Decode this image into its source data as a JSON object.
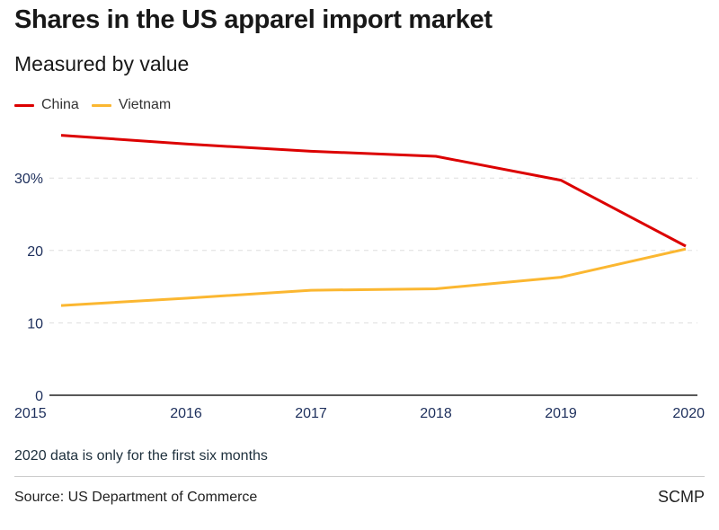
{
  "header": {
    "title": "Shares in the US apparel import market",
    "subtitle": "Measured by value"
  },
  "footer": {
    "note": "2020 data is only for the first six months",
    "source": "Source: US Department of Commerce",
    "brand": "SCMP"
  },
  "chart_data": {
    "type": "line",
    "title": "Shares in the US apparel import market",
    "subtitle": "Measured by value",
    "xlabel": "",
    "ylabel": "",
    "x": [
      "2015",
      "2016",
      "2017",
      "2018",
      "2019",
      "2020"
    ],
    "series": [
      {
        "name": "China",
        "color": "#dc0000",
        "values": [
          35.9,
          34.7,
          33.7,
          33.0,
          29.7,
          20.6
        ]
      },
      {
        "name": "Vietnam",
        "color": "#fbb731",
        "values": [
          12.4,
          13.4,
          14.5,
          14.7,
          16.3,
          20.2
        ]
      }
    ],
    "ylim": [
      0,
      40
    ],
    "yticks": [
      0,
      10,
      20,
      30
    ],
    "ytick_labels": [
      "0",
      "10",
      "20",
      "30%"
    ],
    "grid": true,
    "legend_position": "top-left",
    "annotations": [
      "2020 data is only for the first six months"
    ]
  }
}
